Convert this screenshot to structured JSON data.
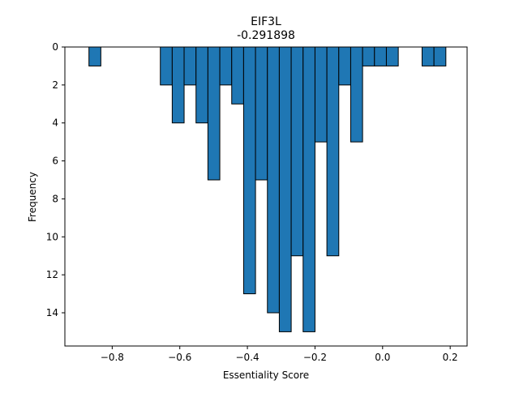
{
  "chart_data": {
    "type": "bar",
    "title": "EIF3L",
    "subtitle": "-0.291898",
    "xlabel": "Essentiality Score",
    "ylabel": "Frequency",
    "y_axis_inverted": true,
    "xlim": [
      -0.94,
      0.25
    ],
    "ylim": [
      0,
      15.75
    ],
    "bin_width": 0.0352,
    "bar_color": "#1f77b4",
    "edge_color": "#000000",
    "grid": false,
    "x_ticks": [
      {
        "value": -0.8,
        "label": "−0.8"
      },
      {
        "value": -0.6,
        "label": "−0.6"
      },
      {
        "value": -0.4,
        "label": "−0.4"
      },
      {
        "value": -0.2,
        "label": "−0.2"
      },
      {
        "value": 0.0,
        "label": "0.0"
      },
      {
        "value": 0.2,
        "label": "0.2"
      }
    ],
    "y_ticks": [
      {
        "value": 0,
        "label": "0"
      },
      {
        "value": 2,
        "label": "2"
      },
      {
        "value": 4,
        "label": "4"
      },
      {
        "value": 6,
        "label": "6"
      },
      {
        "value": 8,
        "label": "8"
      },
      {
        "value": 10,
        "label": "10"
      },
      {
        "value": 12,
        "label": "12"
      },
      {
        "value": 14,
        "label": "14"
      }
    ],
    "bins": [
      {
        "x_start": -0.8688,
        "count": 1
      },
      {
        "x_start": -0.8336,
        "count": 0
      },
      {
        "x_start": -0.7984,
        "count": 0
      },
      {
        "x_start": -0.7632,
        "count": 0
      },
      {
        "x_start": -0.728,
        "count": 0
      },
      {
        "x_start": -0.6928,
        "count": 0
      },
      {
        "x_start": -0.6576,
        "count": 2
      },
      {
        "x_start": -0.6224,
        "count": 4
      },
      {
        "x_start": -0.5872,
        "count": 2
      },
      {
        "x_start": -0.552,
        "count": 4
      },
      {
        "x_start": -0.5168,
        "count": 7
      },
      {
        "x_start": -0.4816,
        "count": 2
      },
      {
        "x_start": -0.4464,
        "count": 3
      },
      {
        "x_start": -0.4112,
        "count": 13
      },
      {
        "x_start": -0.376,
        "count": 7
      },
      {
        "x_start": -0.3408,
        "count": 14
      },
      {
        "x_start": -0.3056,
        "count": 15
      },
      {
        "x_start": -0.2704,
        "count": 11
      },
      {
        "x_start": -0.2352,
        "count": 15
      },
      {
        "x_start": -0.2,
        "count": 5
      },
      {
        "x_start": -0.1648,
        "count": 11
      },
      {
        "x_start": -0.1296,
        "count": 2
      },
      {
        "x_start": -0.0944,
        "count": 5
      },
      {
        "x_start": -0.0592,
        "count": 1
      },
      {
        "x_start": -0.024,
        "count": 1
      },
      {
        "x_start": 0.0112,
        "count": 1
      },
      {
        "x_start": 0.0464,
        "count": 0
      },
      {
        "x_start": 0.0816,
        "count": 0
      },
      {
        "x_start": 0.1168,
        "count": 1
      },
      {
        "x_start": 0.152,
        "count": 1
      }
    ]
  }
}
